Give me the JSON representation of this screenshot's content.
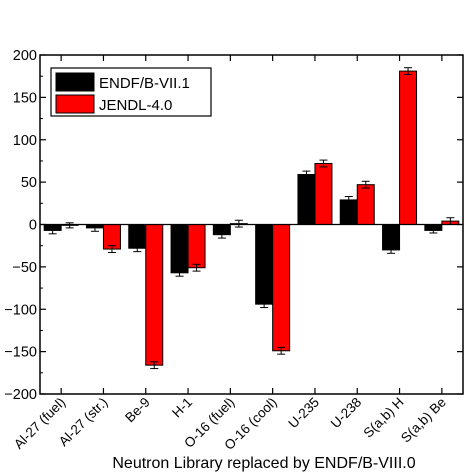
{
  "chart_data": {
    "type": "bar",
    "categories": [
      "Al-27 (fuel)",
      "Al-27 (str.)",
      "Be-9",
      "H-1",
      "O-16 (fuel)",
      "O-16 (cool)",
      "U-235",
      "U-238",
      "S(a,b) H",
      "S(a,b) Be"
    ],
    "series": [
      {
        "name": "ENDF/B-VII.1",
        "color": "#000000",
        "values": [
          -7,
          -4,
          -28,
          -57,
          -12,
          -94,
          59,
          29,
          -30,
          -7
        ],
        "errors": [
          4,
          4,
          4,
          4,
          4,
          4,
          4,
          4,
          4,
          3
        ]
      },
      {
        "name": "JENDL-4.0",
        "color": "#ff0000",
        "values": [
          -1,
          -29,
          -166,
          -51,
          1,
          -149,
          72,
          47,
          181,
          4
        ],
        "errors": [
          3,
          4,
          4,
          4,
          4,
          4,
          4,
          4,
          4,
          4
        ]
      }
    ],
    "ylim": [
      -200,
      200
    ],
    "yticks": [
      -200,
      -150,
      -100,
      -50,
      0,
      50,
      100,
      150,
      200
    ],
    "xlabel": "Neutron Library replaced by ENDF/B-VIII.0",
    "ylabel": "",
    "legend_position": "top-left",
    "grid": false
  }
}
